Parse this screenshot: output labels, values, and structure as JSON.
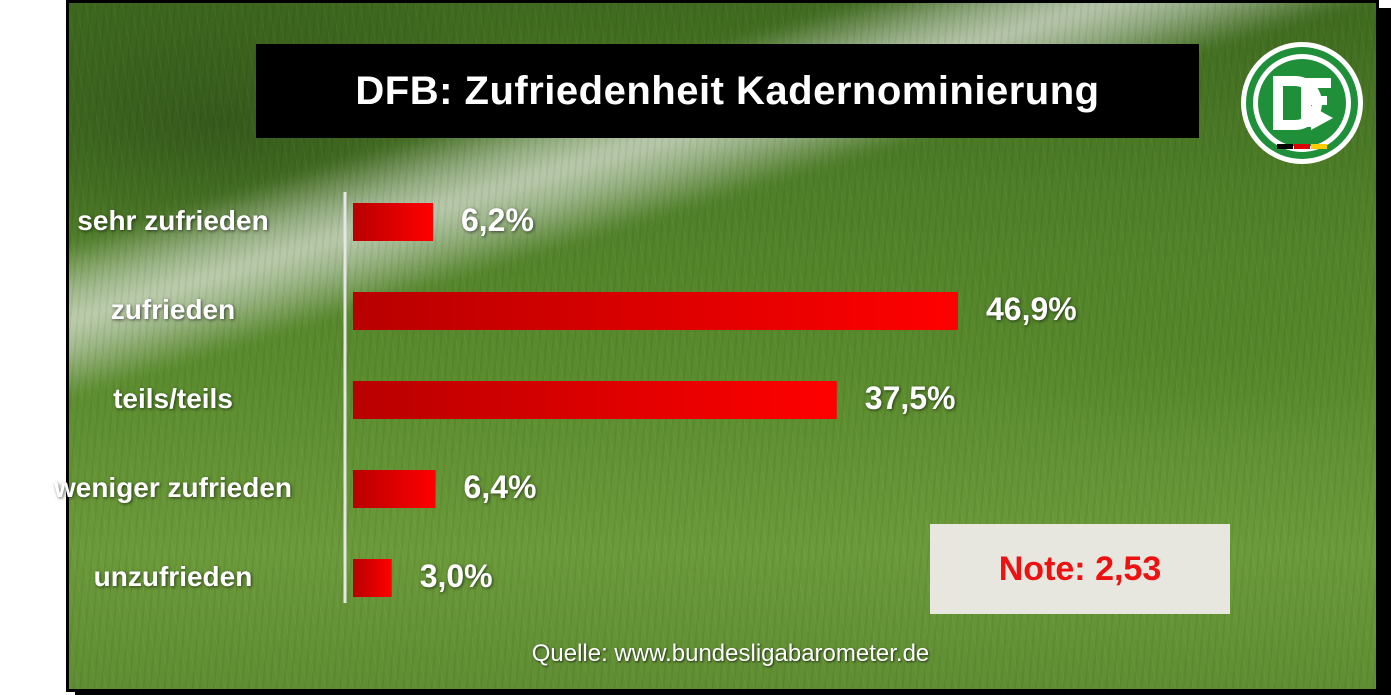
{
  "title": "DFB: Zufriedenheit Kadernominierung",
  "logo": {
    "icon": "dfb-logo-icon",
    "letters": "DFB",
    "ring_color": "#1f8f3a",
    "flag_colors": [
      "#000000",
      "#dd0000",
      "#ffcc00"
    ]
  },
  "chart_data": {
    "type": "bar",
    "orientation": "horizontal",
    "categories": [
      "sehr zufrieden",
      "zufrieden",
      "teils/teils",
      "weniger zufrieden",
      "unzufrieden"
    ],
    "values": [
      6.2,
      46.9,
      37.5,
      6.4,
      3.0
    ],
    "value_labels": [
      "6,2%",
      "46,9%",
      "37,5%",
      "6,4%",
      "3,0%"
    ],
    "unit": "%",
    "bar_color": "#ff0000",
    "bar_color_dark": "#b80000"
  },
  "note": "Note: 2,53",
  "source": "Quelle: www.bundesligabarometer.de"
}
